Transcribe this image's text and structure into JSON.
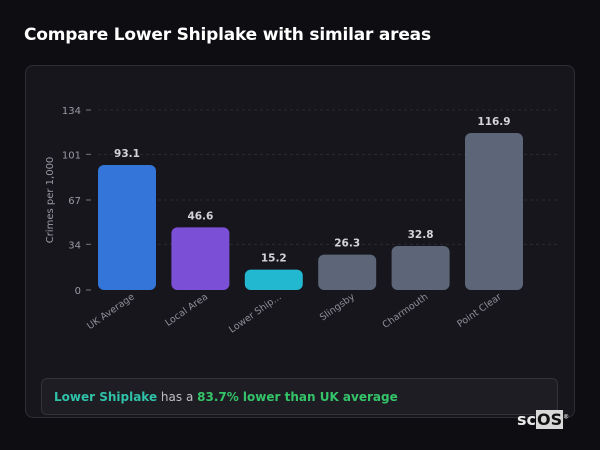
{
  "title": "Compare Lower Shiplake with similar areas",
  "chart_data": {
    "type": "bar",
    "ylabel": "Crimes per 1,000",
    "ylim": [
      0,
      134
    ],
    "yticks": [
      0,
      34,
      67,
      101,
      134
    ],
    "grid": true,
    "categories": [
      "UK Average",
      "Local Area",
      "Lower Ship...",
      "Slingsby",
      "Charmouth",
      "Point Clear"
    ],
    "values": [
      93.1,
      46.6,
      15.2,
      26.3,
      32.8,
      116.9
    ],
    "value_labels": [
      "93.1",
      "46.6",
      "15.2",
      "26.3",
      "32.8",
      "116.9"
    ],
    "colors": [
      "#3375d9",
      "#7b4fd6",
      "#22b8cf",
      "#5c6678",
      "#5c6678",
      "#5c6678"
    ]
  },
  "summary": {
    "area": "Lower Shiplake",
    "middle": " has a ",
    "comparison": "83.7% lower than UK average"
  },
  "logo": {
    "text_a": "sc",
    "text_b": "OS",
    "mark": "®"
  }
}
